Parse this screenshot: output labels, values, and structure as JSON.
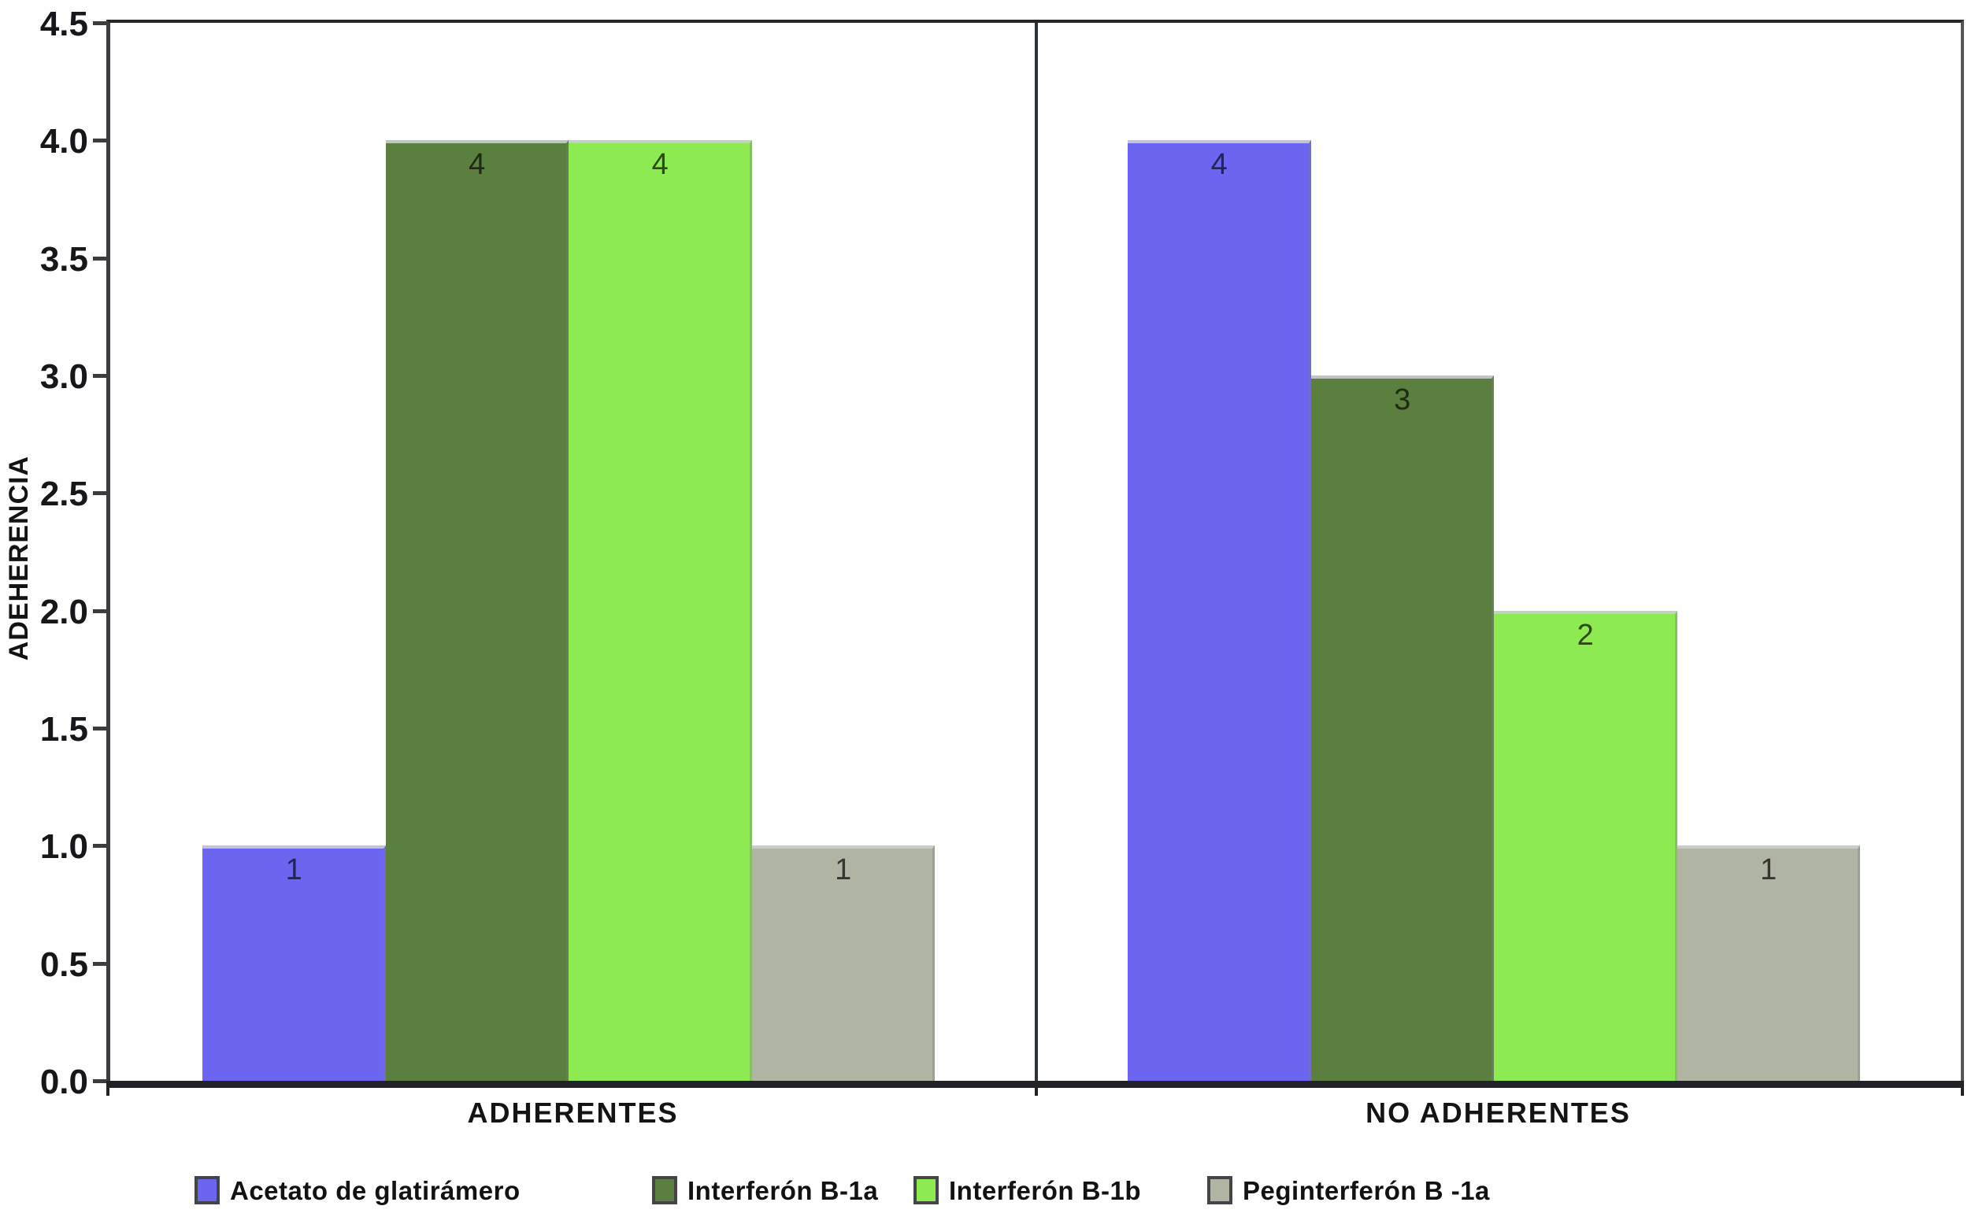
{
  "figure": {
    "background": "#fefefe",
    "axis_color": "#2b2c30"
  },
  "chart_data": {
    "type": "bar",
    "title": "",
    "xlabel": "",
    "ylabel": "ADEHERENCIA",
    "categories": [
      "ADHERENTES",
      "NO ADHERENTES"
    ],
    "series": [
      {
        "name": "Acetato de glatirámero",
        "color": "#6B65EF",
        "value_label_color": "#24245c",
        "values": [
          1,
          4
        ]
      },
      {
        "name": "Interferón B-1a",
        "color": "#5B7F3E",
        "value_label_color": "#1f2b10",
        "values": [
          4,
          3
        ]
      },
      {
        "name": "Interferón B-1b",
        "color": "#8DEB51",
        "value_label_color": "#2c4a14",
        "values": [
          4,
          2
        ]
      },
      {
        "name": "Peginterferón B -1a",
        "color": "#AFB5A2",
        "value_label_color": "#36362f",
        "values": [
          1,
          1
        ]
      }
    ],
    "ylim": [
      0,
      4.5
    ],
    "yticks": [
      0.0,
      0.5,
      1.0,
      1.5,
      2.0,
      2.5,
      3.0,
      3.5,
      4.0,
      4.5
    ],
    "ytick_decimals": 1,
    "bar_value_labels": [
      [
        1,
        4,
        4,
        1
      ],
      [
        4,
        3,
        2,
        1
      ]
    ],
    "grid": false,
    "legend_position": "bottom"
  }
}
